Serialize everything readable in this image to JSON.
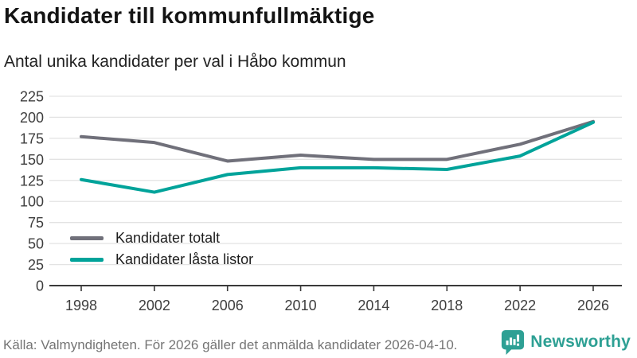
{
  "header": {
    "title": "Kandidater till kommunfullmäktige",
    "subtitle": "Antal unika kandidater per val i Håbo kommun"
  },
  "chart_data": {
    "type": "line",
    "x": [
      "1998",
      "2002",
      "2006",
      "2010",
      "2014",
      "2018",
      "2022",
      "2026"
    ],
    "series": [
      {
        "name": "Kandidater totalt",
        "color": "#70707a",
        "values": [
          177,
          170,
          148,
          155,
          150,
          150,
          168,
          195
        ]
      },
      {
        "name": "Kandidater låsta listor",
        "color": "#00a39a",
        "values": [
          126,
          111,
          132,
          140,
          140,
          138,
          154,
          194
        ]
      }
    ],
    "ylim": [
      0,
      225
    ],
    "ytick_step": 25,
    "grid": "horizontal",
    "grid_color": "#e3e3e3",
    "axis_color": "#3a3a3a",
    "tick_label_color": "#3e3e3e",
    "legend_position": "inside-bottom-left"
  },
  "footer": {
    "source": "Källa: Valmyndigheten. För 2026 gäller det anmälda kandidater 2026-04-10.",
    "brand": "Newsworthy",
    "brand_color": "#2ea094"
  }
}
